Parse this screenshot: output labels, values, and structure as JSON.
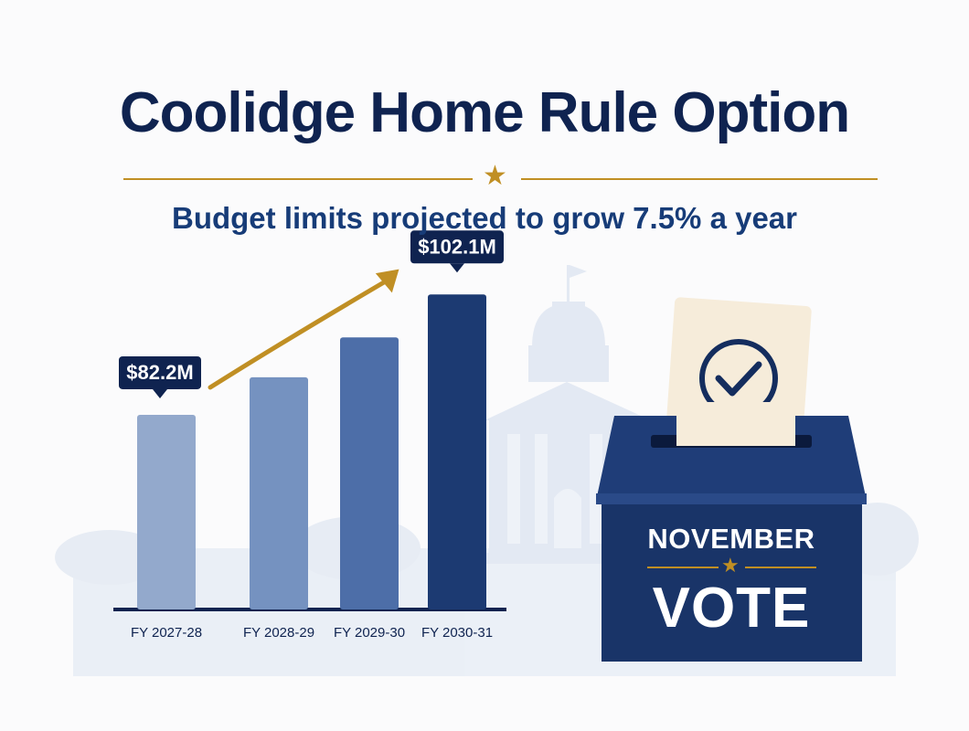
{
  "header": {
    "title": "Coolidge Home Rule Option",
    "subtitle": "Budget limits projected to grow 7.5% a year"
  },
  "ballot_box": {
    "line1": "NOVEMBER",
    "line2": "VOTE"
  },
  "colors": {
    "navy": "#0f2350",
    "gold": "#c08f24",
    "bar_1": "#93a9cc",
    "bar_2": "#7592c0",
    "bar_3": "#4d6ea8",
    "bar_4": "#1c3a72"
  },
  "chart_data": {
    "type": "bar",
    "categories": [
      "FY 2027-28",
      "FY 2028-29",
      "FY 2029-30",
      "FY 2030-31"
    ],
    "values": [
      82.2,
      88.4,
      95.0,
      102.1
    ],
    "data_labels": [
      "$82.2M",
      "",
      "",
      "$102.1M"
    ],
    "ylim": [
      50,
      110
    ],
    "xlabel": "",
    "ylabel": "",
    "grid": false,
    "trend_arrow": true
  }
}
